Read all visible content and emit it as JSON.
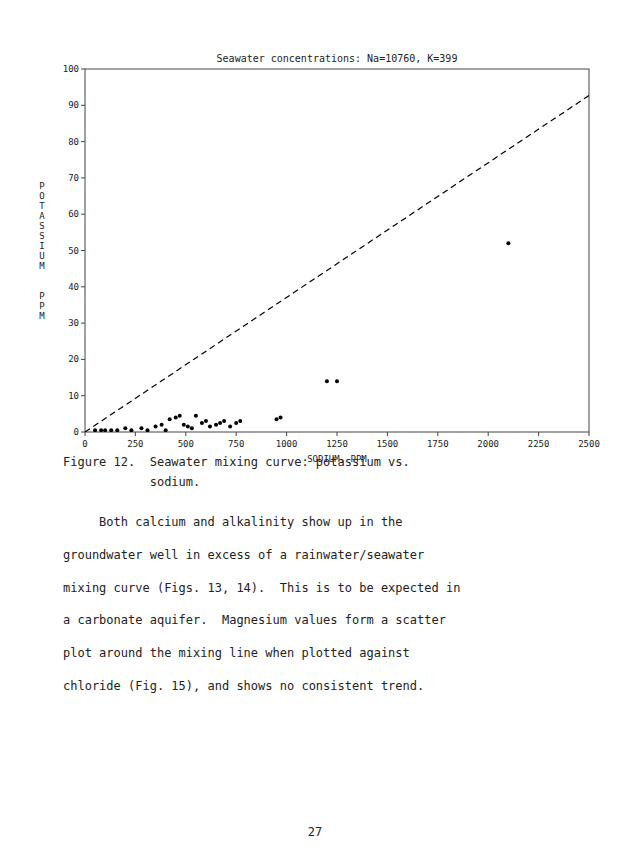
{
  "chart_data": {
    "type": "scatter",
    "title": "Seawater concentrations: Na=10760, K=399",
    "xlabel": "SODIUM, PPM",
    "ylabel": "POTASSIUM  PPM",
    "xlim": [
      0,
      2500
    ],
    "ylim": [
      0,
      100
    ],
    "xticks": [
      0,
      250,
      500,
      750,
      1000,
      1250,
      1500,
      1750,
      2000,
      2250,
      2500
    ],
    "yticks": [
      0,
      10,
      20,
      30,
      40,
      50,
      60,
      70,
      80,
      90,
      100
    ],
    "series": [
      {
        "type": "line",
        "line_style": "dashed",
        "color": "#000000",
        "x": [
          0,
          2500
        ],
        "values": [
          0,
          92.70446096654275
        ]
      },
      {
        "type": "scatter",
        "marker": "circle",
        "color": "#000000",
        "x": [
          50,
          80,
          100,
          130,
          160,
          200,
          230,
          280,
          310,
          350,
          380,
          400,
          420,
          450,
          470,
          490,
          510,
          530,
          550,
          580,
          600,
          620,
          650,
          670,
          690,
          720,
          750,
          770,
          950,
          970,
          1200,
          1250,
          2100
        ],
        "values": [
          0.5,
          0.5,
          0.5,
          0.5,
          0.5,
          1.0,
          0.5,
          1.0,
          0.5,
          1.5,
          2.0,
          0.5,
          3.5,
          4.0,
          4.5,
          2.0,
          1.5,
          1.0,
          4.5,
          2.5,
          3.0,
          1.5,
          2.0,
          2.5,
          3.0,
          1.5,
          2.5,
          3.0,
          3.5,
          4.0,
          14,
          14,
          52
        ]
      }
    ]
  },
  "caption": [
    "Figure 12.  Seawater mixing curve: potassium vs.",
    "            sodium."
  ],
  "body": [
    "     Both calcium and alkalinity show up in the",
    "groundwater well in excess of a rainwater/seawater",
    "mixing curve (Figs. 13, 14).  This is to be expected in",
    "a carbonate aquifer.  Magnesium values form a scatter",
    "plot around the mixing line when plotted against",
    "chloride (Fig. 15), and shows no consistent trend."
  ],
  "page_number": "27"
}
